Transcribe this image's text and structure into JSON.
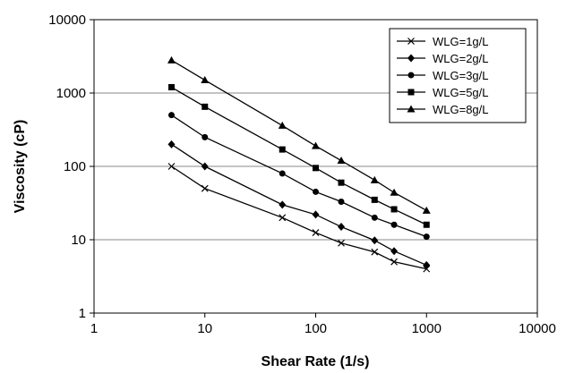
{
  "chart_data": {
    "type": "line",
    "title": "",
    "xlabel": "Shear Rate (1/s)",
    "ylabel": "Viscosity (cP)",
    "x_scale": "log",
    "y_scale": "log",
    "xlim": [
      1,
      10000
    ],
    "ylim": [
      1,
      10000
    ],
    "x_ticks": [
      "1",
      "10",
      "100",
      "1000",
      "10000"
    ],
    "y_ticks": [
      "1",
      "10",
      "100",
      "1000",
      "10000"
    ],
    "grid": "horizontal",
    "legend_position": "top-right",
    "x": [
      5,
      10,
      50,
      100,
      170,
      340,
      510,
      1000
    ],
    "series": [
      {
        "name": "WLG=1g/L",
        "marker": "x",
        "values": [
          100,
          50,
          20,
          12.5,
          9,
          6.8,
          5,
          4
        ]
      },
      {
        "name": "WLG=2g/L",
        "marker": "diamond",
        "values": [
          200,
          100,
          30,
          22,
          15,
          9.8,
          7,
          4.5
        ]
      },
      {
        "name": "WLG=3g/L",
        "marker": "circle",
        "values": [
          500,
          250,
          80,
          45,
          33,
          20,
          16,
          11
        ]
      },
      {
        "name": "WLG=5g/L",
        "marker": "square",
        "values": [
          1200,
          650,
          170,
          95,
          60,
          35,
          26,
          16
        ]
      },
      {
        "name": "WLG=8g/L",
        "marker": "triangle",
        "values": [
          2800,
          1500,
          360,
          190,
          120,
          65,
          44,
          25
        ]
      }
    ]
  }
}
